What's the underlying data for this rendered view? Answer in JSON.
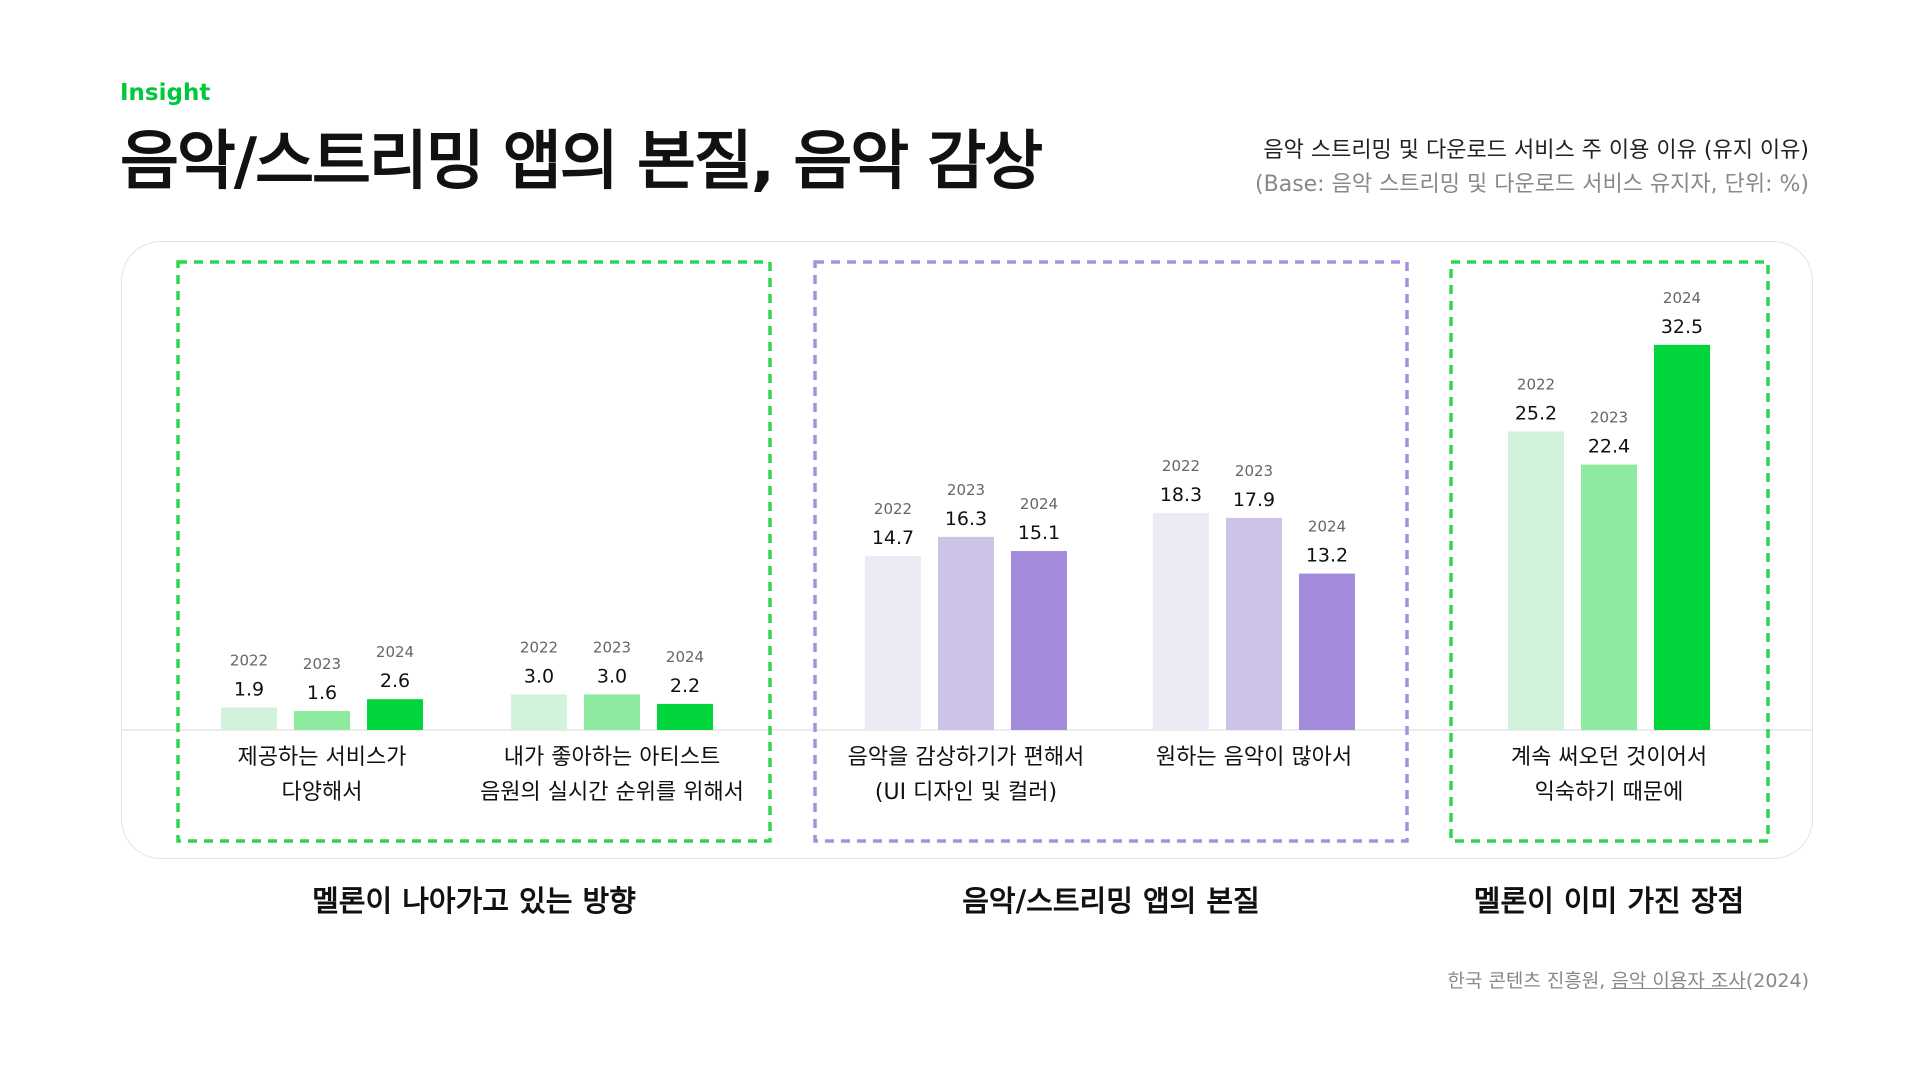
{
  "header": {
    "eyebrow": "Insight",
    "title": "음악/스트리밍 앱의 본질, 음악 감상",
    "subtitle": "음악 스트리밍 및 다운로드 서비스 주 이용 이유 (유지 이유)",
    "base_note": "(Base: 음악 스트리밍 및 다운로드 서비스 유지자, 단위: %)"
  },
  "chart_data": {
    "type": "bar",
    "unit": "%",
    "years": [
      "2022",
      "2023",
      "2024"
    ],
    "categories": [
      {
        "label_lines": [
          "제공하는 서비스가",
          "다양해서"
        ],
        "values": [
          1.9,
          1.6,
          2.6
        ],
        "group": 0
      },
      {
        "label_lines": [
          "내가 좋아하는 아티스트",
          "음원의 실시간 순위를 위해서"
        ],
        "values": [
          3.0,
          3.0,
          2.2
        ],
        "group": 0
      },
      {
        "label_lines": [
          "음악을 감상하기가 편해서",
          "(UI 디자인 및 컬러)"
        ],
        "values": [
          14.7,
          16.3,
          15.1
        ],
        "group": 1
      },
      {
        "label_lines": [
          "원하는 음악이 많아서"
        ],
        "values": [
          18.3,
          17.9,
          13.2
        ],
        "group": 1
      },
      {
        "label_lines": [
          "계속 써오던 것이어서",
          "익숙하기 때문에"
        ],
        "values": [
          25.2,
          22.4,
          32.5
        ],
        "group": 2
      }
    ],
    "groups": [
      {
        "label": "멜론이 나아가고 있는 방향",
        "palette": [
          "#d3f2dc",
          "#8dea9f",
          "#00d63b"
        ],
        "border_color": "#2ed64f"
      },
      {
        "label": "음악/스트리밍 앱의 본질",
        "palette": [
          "#edeaf5",
          "#cdc3e6",
          "#a38ada"
        ],
        "border_color": "#a890dc"
      },
      {
        "label": "멜론이 이미 가진 장점",
        "palette": [
          "#d3f2dc",
          "#8dea9f",
          "#00d63b"
        ],
        "border_color": "#2ed64f"
      }
    ]
  },
  "footer": {
    "source_prefix": "한국 콘텐츠 진흥원, ",
    "source_link": "음악 이용자 조사",
    "source_suffix": "(2024)"
  }
}
